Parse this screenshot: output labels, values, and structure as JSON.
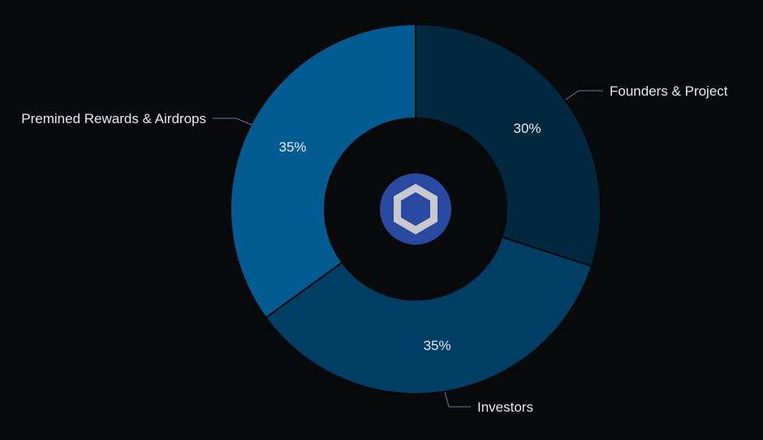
{
  "chart_data": {
    "type": "pie",
    "variant": "donut",
    "title": "",
    "slices": [
      {
        "label": "Founders & Project",
        "value": 30,
        "value_label": "30%",
        "color": "#022840"
      },
      {
        "label": "Investors",
        "value": 35,
        "value_label": "35%",
        "color": "#013e66"
      },
      {
        "label": "Premined Rewards & Airdrops",
        "value": 35,
        "value_label": "35%",
        "color": "#025b91"
      }
    ],
    "start_angle": "top",
    "direction": "clockwise",
    "legend": "callout labels beside slices",
    "center_icon": "chainlink-hexagon-logo-icon"
  },
  "colors": {
    "background": "#08090b",
    "slice_border": "#08090b",
    "label_text": "#e6e9ee",
    "leader_line": "#5f7f9c",
    "logo_circle": "#2a4aa1",
    "logo_hexagon": "#c7c9cc"
  }
}
